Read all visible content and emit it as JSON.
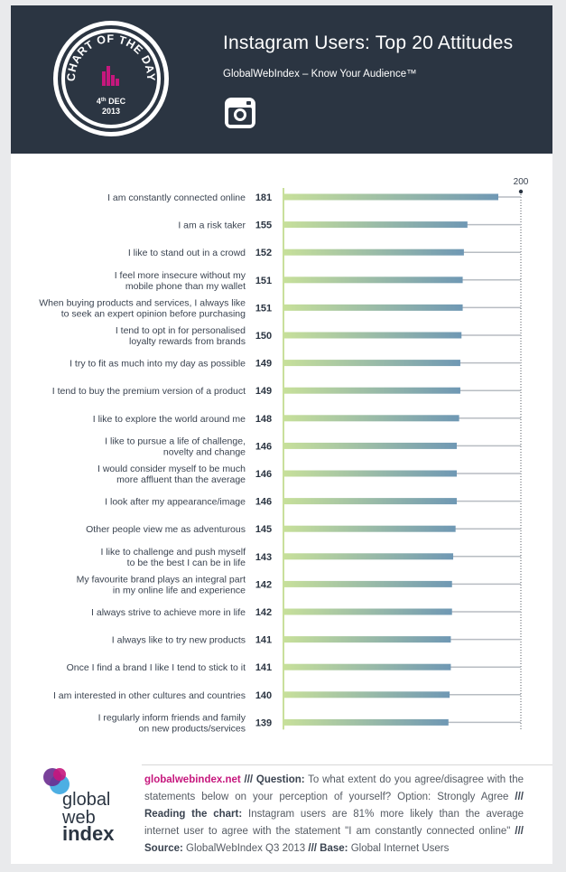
{
  "header": {
    "badge_text": "CHART OF THE DAY",
    "badge_date_day": "4",
    "badge_date_suffix": "th",
    "badge_date_month": "DEC",
    "badge_date_year": "2013",
    "title": "Instagram Users: Top 20 Attitudes",
    "subtitle": "GlobalWebIndex – Know Your Audience™",
    "icon": "instagram-icon"
  },
  "chart_data": {
    "type": "bar",
    "orientation": "horizontal",
    "title": "Instagram Users: Top 20 Attitudes",
    "xlim": [
      0,
      200
    ],
    "reference_label": "200",
    "categories": [
      [
        "I am constantly connected online"
      ],
      [
        "I am a risk taker"
      ],
      [
        "I like to stand out in a crowd"
      ],
      [
        "I feel more insecure without my",
        "mobile phone than my wallet"
      ],
      [
        "When buying products and services, I always like",
        "to seek an expert opinion before purchasing"
      ],
      [
        "I tend to opt in for personalised",
        "loyalty rewards from brands"
      ],
      [
        "I try to fit as much into my day as possible"
      ],
      [
        "I tend to buy the premium version of a product"
      ],
      [
        "I like to explore the world around me"
      ],
      [
        "I like to pursue a life of challenge,",
        "novelty and change"
      ],
      [
        "I would consider myself to be much",
        "more affluent than the average"
      ],
      [
        "I look after my appearance/image"
      ],
      [
        "Other people view me as adventurous"
      ],
      [
        "I like to challenge and push myself",
        "to be the best I can be in life"
      ],
      [
        "My favourite brand plays an integral part",
        "in my online life and experience"
      ],
      [
        "I always strive to achieve more in life"
      ],
      [
        "I always like to try new products"
      ],
      [
        "Once I find a brand I like I tend to stick to it"
      ],
      [
        "I am interested in other cultures and countries"
      ],
      [
        "I regularly inform friends and family",
        "on new products/services"
      ]
    ],
    "values": [
      181,
      155,
      152,
      151,
      151,
      150,
      149,
      149,
      148,
      146,
      146,
      146,
      145,
      143,
      142,
      142,
      141,
      141,
      140,
      139
    ],
    "colors": {
      "bar_start": "#c7e09a",
      "bar_end": "#6f98b4",
      "track": "#b7bcc2",
      "axis": "#c9df9c",
      "value_text": "#2b3542",
      "label_text": "#3a4350"
    }
  },
  "footer": {
    "logo_words": [
      "global",
      "web",
      "index"
    ],
    "logo_colors": [
      "#c6177d",
      "#6a2c8f",
      "#3aa6e0"
    ],
    "site": "globalwebindex.net",
    "sep": "///",
    "question_label": "Question:",
    "question_text": "To what extent do you agree/disagree with the statements below on your perception of yourself? Option: Strongly Agree",
    "reading_label": "Reading the chart:",
    "reading_text": "Instagram users are 81% more likely than the average internet user to agree with the statement \"I am constantly connected online\"",
    "source_label": "Source:",
    "source_text": "GlobalWebIndex Q3 2013",
    "base_label": "Base:",
    "base_text": "Global Internet Users"
  }
}
